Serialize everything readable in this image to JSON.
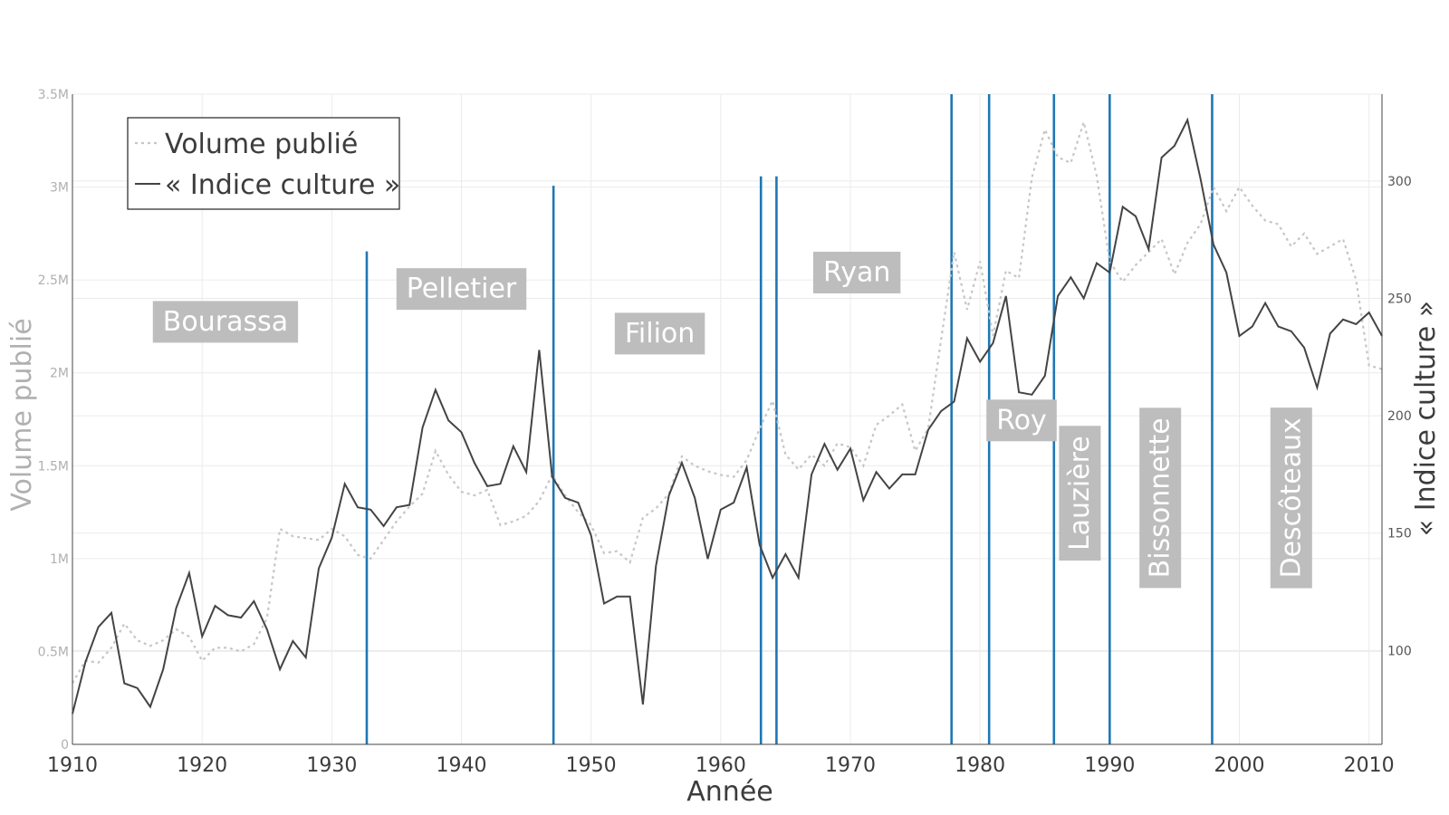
{
  "chart_data": {
    "type": "line",
    "xlabel": "Année",
    "y1label": "Volume publié",
    "y2label": "« Indice culture »",
    "xlim": [
      1910,
      2011
    ],
    "y1lim": [
      0,
      3500000
    ],
    "y2lim": [
      60,
      337
    ],
    "x_ticks": [
      1910,
      1920,
      1930,
      1940,
      1950,
      1960,
      1970,
      1980,
      1990,
      2000,
      2010
    ],
    "x_tick_labels": [
      "1910",
      "1920",
      "1930",
      "1940",
      "1950",
      "1960",
      "1970",
      "1980",
      "1990",
      "2000",
      "2010"
    ],
    "y1_ticks": [
      0,
      500000,
      1000000,
      1500000,
      2000000,
      2500000,
      3000000,
      3500000
    ],
    "y1_tick_labels": [
      "0",
      "0.5M",
      "1M",
      "1.5M",
      "2M",
      "2.5M",
      "3M",
      "3.5M"
    ],
    "y2_ticks": [
      100,
      150,
      200,
      250,
      300
    ],
    "y2_tick_labels": [
      "100",
      "150",
      "200",
      "250",
      "300"
    ],
    "grid": true,
    "legend_position": "top-left",
    "colors": {
      "volume": "#c6c6c6",
      "indice": "#444444",
      "event_line": "#1f77b4",
      "label_box": "#bdbdbd"
    },
    "series": [
      {
        "name": "Volume publié",
        "axis": "y1",
        "style": "dotted",
        "x": [
          1910,
          1911,
          1912,
          1913,
          1914,
          1915,
          1916,
          1917,
          1918,
          1919,
          1920,
          1921,
          1922,
          1923,
          1924,
          1925,
          1926,
          1927,
          1928,
          1929,
          1930,
          1931,
          1932,
          1933,
          1934,
          1935,
          1936,
          1937,
          1938,
          1939,
          1940,
          1941,
          1942,
          1943,
          1944,
          1945,
          1946,
          1947,
          1948,
          1949,
          1950,
          1951,
          1952,
          1953,
          1954,
          1955,
          1956,
          1957,
          1958,
          1959,
          1960,
          1961,
          1962,
          1963,
          1964,
          1965,
          1966,
          1967,
          1968,
          1969,
          1970,
          1971,
          1972,
          1973,
          1974,
          1975,
          1976,
          1977,
          1978,
          1979,
          1980,
          1981,
          1982,
          1983,
          1984,
          1985,
          1986,
          1987,
          1988,
          1989,
          1990,
          1991,
          1992,
          1993,
          1994,
          1995,
          1996,
          1997,
          1998,
          1999,
          2000,
          2001,
          2002,
          2003,
          2004,
          2005,
          2006,
          2007,
          2008,
          2009,
          2010,
          2011
        ],
        "values": [
          330000,
          450000,
          440000,
          520000,
          650000,
          560000,
          530000,
          560000,
          620000,
          580000,
          450000,
          520000,
          520000,
          500000,
          540000,
          680000,
          1160000,
          1120000,
          1110000,
          1100000,
          1160000,
          1120000,
          1020000,
          1000000,
          1100000,
          1200000,
          1280000,
          1350000,
          1580000,
          1450000,
          1360000,
          1340000,
          1370000,
          1180000,
          1200000,
          1230000,
          1310000,
          1450000,
          1340000,
          1250000,
          1180000,
          1030000,
          1040000,
          980000,
          1220000,
          1270000,
          1350000,
          1550000,
          1500000,
          1470000,
          1450000,
          1440000,
          1530000,
          1700000,
          1850000,
          1560000,
          1480000,
          1560000,
          1500000,
          1620000,
          1600000,
          1500000,
          1720000,
          1770000,
          1830000,
          1580000,
          1700000,
          2180000,
          2650000,
          2340000,
          2600000,
          2200000,
          2550000,
          2510000,
          3050000,
          3310000,
          3160000,
          3130000,
          3350000,
          3060000,
          2600000,
          2490000,
          2580000,
          2650000,
          2720000,
          2530000,
          2700000,
          2800000,
          3000000,
          2870000,
          3000000,
          2900000,
          2820000,
          2800000,
          2680000,
          2750000,
          2640000,
          2680000,
          2720000,
          2500000,
          2040000,
          2020000
        ]
      },
      {
        "name": "« Indice culture »",
        "axis": "y2",
        "style": "solid",
        "x": [
          1910,
          1911,
          1912,
          1913,
          1914,
          1915,
          1916,
          1917,
          1918,
          1919,
          1920,
          1921,
          1922,
          1923,
          1924,
          1925,
          1926,
          1927,
          1928,
          1929,
          1930,
          1931,
          1932,
          1933,
          1934,
          1935,
          1936,
          1937,
          1938,
          1939,
          1940,
          1941,
          1942,
          1943,
          1944,
          1945,
          1946,
          1947,
          1948,
          1949,
          1950,
          1951,
          1952,
          1953,
          1954,
          1955,
          1956,
          1957,
          1958,
          1959,
          1960,
          1961,
          1962,
          1963,
          1964,
          1965,
          1966,
          1967,
          1968,
          1969,
          1970,
          1971,
          1972,
          1973,
          1974,
          1975,
          1976,
          1977,
          1978,
          1979,
          1980,
          1981,
          1982,
          1983,
          1984,
          1985,
          1986,
          1987,
          1988,
          1989,
          1990,
          1991,
          1992,
          1993,
          1994,
          1995,
          1996,
          1997,
          1998,
          1999,
          2000,
          2001,
          2002,
          2003,
          2004,
          2005,
          2006,
          2007,
          2008,
          2009,
          2010,
          2011
        ],
        "values": [
          73,
          95,
          110,
          116,
          86,
          84,
          76,
          92,
          118,
          133,
          106,
          119,
          115,
          114,
          121,
          109,
          92,
          104,
          97,
          135,
          148,
          171,
          161,
          160,
          153,
          161,
          162,
          195,
          211,
          198,
          193,
          180,
          170,
          171,
          187,
          176,
          228,
          174,
          165,
          163,
          149,
          120,
          123,
          123,
          77,
          136,
          166,
          180,
          165,
          139,
          160,
          163,
          178,
          145,
          131,
          141,
          131,
          175,
          188,
          177,
          186,
          164,
          176,
          169,
          175,
          175,
          194,
          202,
          206,
          233,
          223,
          231,
          251,
          210,
          209,
          217,
          251,
          259,
          250,
          265,
          261,
          289,
          285,
          271,
          310,
          315,
          326,
          301,
          273,
          261,
          234,
          238,
          248,
          238,
          236,
          229,
          212,
          235,
          241,
          239,
          244,
          234
        ]
      }
    ],
    "events": [
      {
        "x": 1932.7,
        "top_y2": 270
      },
      {
        "x": 1947.1,
        "top_y2": 298
      },
      {
        "x": 1963.1,
        "top_y2": 302
      },
      {
        "x": 1964.3,
        "top_y2": 302
      },
      {
        "x": 1977.8,
        "top_y2": 338
      },
      {
        "x": 1980.7,
        "top_y2": 338
      },
      {
        "x": 1985.7,
        "top_y2": 338
      },
      {
        "x": 1990.0,
        "top_y2": 338
      },
      {
        "x": 1997.9,
        "top_y2": 338
      }
    ],
    "annotations": [
      {
        "text": "Bourassa",
        "x": 1921.8,
        "y2": 240,
        "rotate": false
      },
      {
        "text": "Pelletier",
        "x": 1940.0,
        "y2": 254,
        "rotate": false
      },
      {
        "text": "Filion",
        "x": 1955.3,
        "y2": 235,
        "rotate": false
      },
      {
        "text": "Ryan",
        "x": 1970.5,
        "y2": 261,
        "rotate": false
      },
      {
        "text": "Roy",
        "x": 1983.2,
        "y2": 198,
        "rotate": false
      },
      {
        "text": "Lauzière",
        "x": 1987.7,
        "y2": 167,
        "rotate": true
      },
      {
        "text": "Bissonnette",
        "x": 1993.9,
        "y2": 165,
        "rotate": true
      },
      {
        "text": "Descôteaux",
        "x": 2004.0,
        "y2": 165,
        "rotate": true
      }
    ]
  },
  "legend": {
    "volume_label": "Volume publié",
    "indice_label": "« Indice culture »"
  }
}
